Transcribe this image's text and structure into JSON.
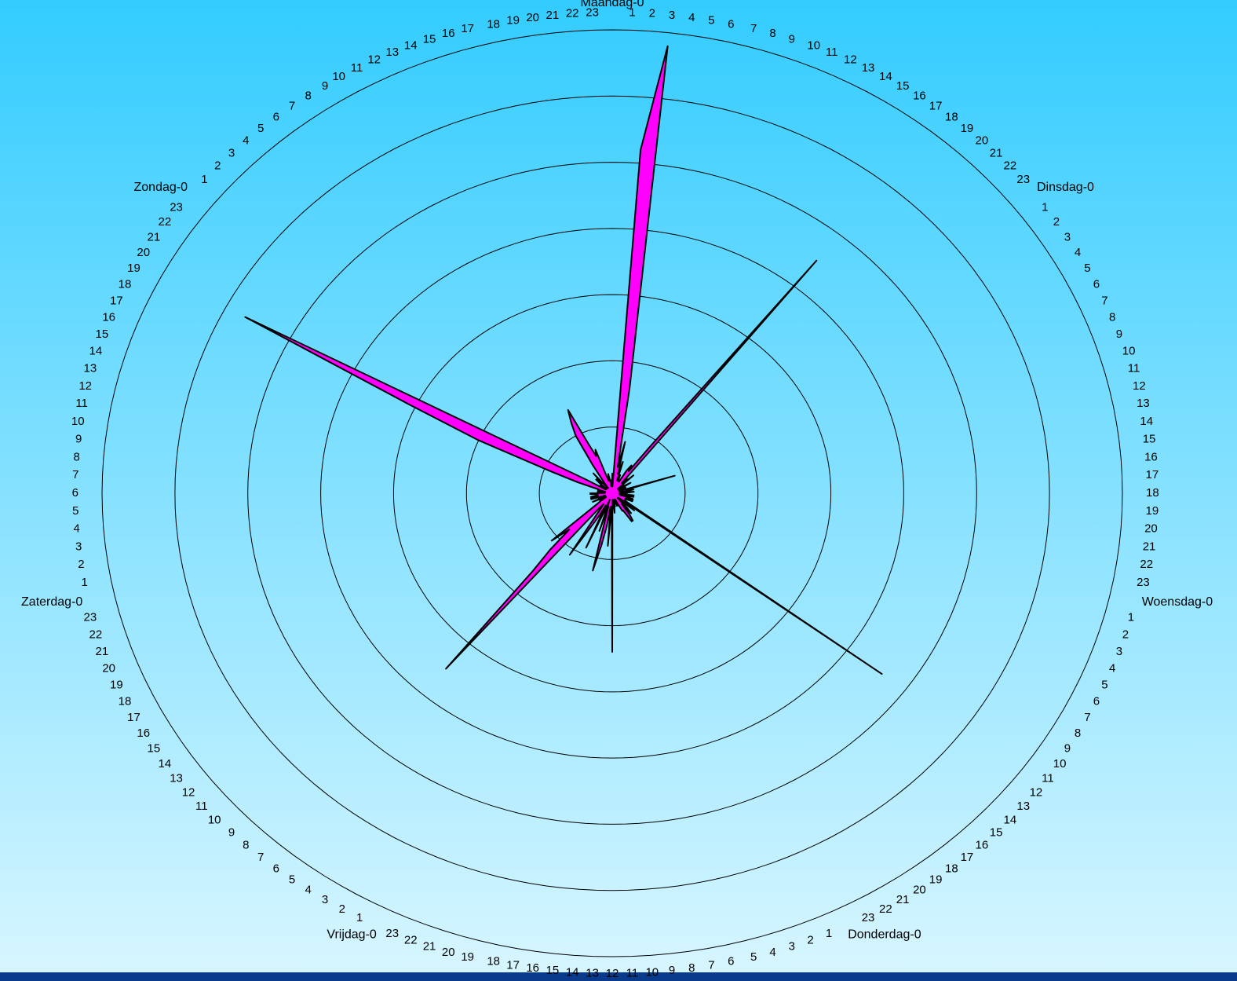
{
  "colors": {
    "background_top": "#33ccff",
    "background_bottom": "#d8f6ff",
    "bottom_bar": "#0a3a8c",
    "fill": "#ff00ff",
    "stroke": "#000000",
    "grid": "#000000"
  },
  "chart_data": {
    "type": "radar",
    "grid": true,
    "rings": 7,
    "r_range": [
      0,
      7
    ],
    "days": [
      "Maandag",
      "Dinsdag",
      "Woensdag",
      "Donderdag",
      "Vrijdag",
      "Zaterdag",
      "Zondag"
    ],
    "hours": [
      "0",
      "1",
      "2",
      "3",
      "4",
      "5",
      "6",
      "7",
      "8",
      "9",
      "10",
      "11",
      "12",
      "13",
      "14",
      "15",
      "16",
      "17",
      "18",
      "19",
      "20",
      "21",
      "22",
      "23"
    ],
    "series": [
      {
        "values": [
          0.3,
          0.1,
          5.2,
          6.8,
          1.6,
          0.4,
          0.8,
          0.3,
          0.5,
          0.2,
          0.3,
          0.2,
          0.2,
          0.2,
          0.4,
          0.5,
          0.4,
          0.9,
          4.5,
          0.2,
          0.3,
          0.2,
          0.4,
          0.1,
          0.2,
          0.1,
          0.2,
          0.3,
          0.1,
          0.2,
          0.2,
          0.1,
          0.2,
          0.1,
          0.9,
          0.2,
          0.2,
          0.3,
          0.1,
          0.2,
          0.3,
          0.2,
          0.1,
          0.2,
          0.1,
          0.3,
          0.2,
          0.3,
          0.1,
          0.2,
          0.3,
          0.2,
          0.3,
          0.3,
          0.2,
          0.2,
          0.2,
          0.2,
          0.3,
          4.6,
          0.1,
          0.4,
          0.2,
          0.1,
          0.3,
          0.4,
          0.2,
          0.4,
          0.5,
          0.5,
          0.3,
          0.3,
          0.2,
          0.1,
          0.2,
          0.2,
          0.1,
          0.1,
          0.1,
          0.2,
          0.2,
          0.3,
          0.1,
          0.1,
          2.4,
          0.2,
          0.8,
          0.2,
          0.5,
          0.8,
          1.2,
          0.2,
          0.6,
          0.1,
          0.3,
          0.9,
          0.2,
          0.4,
          0.6,
          1.1,
          0.3,
          0.2,
          0.3,
          3.5,
          1.6,
          1.2,
          0.8,
          1.1,
          0.3,
          0.2,
          0.1,
          0.2,
          0.1,
          0.2,
          0.3,
          0.1,
          0.2,
          0.1,
          0.3,
          0.3,
          0.2,
          0.3,
          0.2,
          0.2,
          0.2,
          0.3,
          0.3,
          0.1,
          0.2,
          0.2,
          0.2,
          0.1,
          0.1,
          0.2,
          0.2,
          0.5,
          0.9,
          2.0,
          3.1,
          5.7,
          0.4,
          0.1,
          0.2,
          0.2,
          0.1,
          0.2,
          0.3,
          0.3,
          0.2,
          0.4,
          0.1,
          0.1,
          0.2,
          0.5,
          1.0,
          1.2,
          1.4,
          0.8,
          0.6,
          0.7,
          0.3,
          0.2,
          0.2,
          0.3,
          0.2,
          0.1,
          0.2,
          0.1
        ]
      }
    ]
  }
}
